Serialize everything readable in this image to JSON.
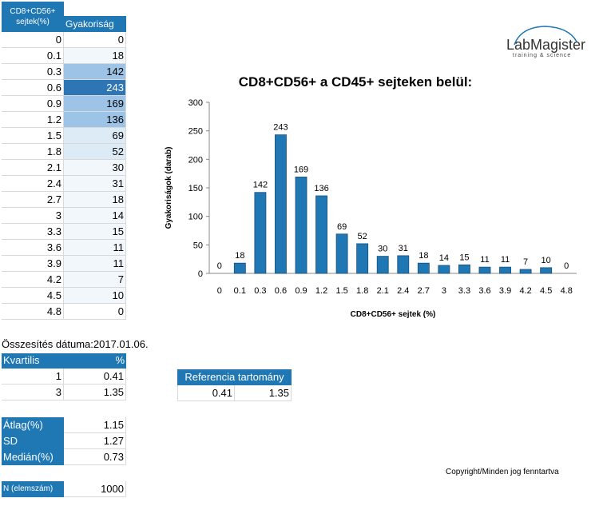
{
  "freq_table": {
    "col1_header_lines": [
      "CD8+CD56+",
      "sejtek(%)"
    ],
    "col2_header": "Gyakoriság",
    "rows": [
      {
        "x": "0",
        "f": "0"
      },
      {
        "x": "0.1",
        "f": "18"
      },
      {
        "x": "0.3",
        "f": "142"
      },
      {
        "x": "0.6",
        "f": "243"
      },
      {
        "x": "0.9",
        "f": "169"
      },
      {
        "x": "1.2",
        "f": "136"
      },
      {
        "x": "1.5",
        "f": "69"
      },
      {
        "x": "1.8",
        "f": "52"
      },
      {
        "x": "2.1",
        "f": "30"
      },
      {
        "x": "2.4",
        "f": "31"
      },
      {
        "x": "2.7",
        "f": "18"
      },
      {
        "x": "3",
        "f": "14"
      },
      {
        "x": "3.3",
        "f": "15"
      },
      {
        "x": "3.6",
        "f": "11"
      },
      {
        "x": "3.9",
        "f": "11"
      },
      {
        "x": "4.2",
        "f": "7"
      },
      {
        "x": "4.5",
        "f": "10"
      },
      {
        "x": "4.8",
        "f": "0"
      }
    ]
  },
  "summary_date": "Összesítés dátuma:2017.01.06.",
  "quartile_table": {
    "header_left": "Kvartilis",
    "header_right": "%",
    "rows": [
      {
        "q": "1",
        "v": "0.41"
      },
      {
        "q": "3",
        "v": "1.35"
      }
    ]
  },
  "reference": {
    "header": "Referencia tartomány",
    "low": "0.41",
    "high": "1.35"
  },
  "stats": [
    {
      "label": "Átlag(%)",
      "value": "1.15"
    },
    {
      "label": "SD",
      "value": "1.27"
    },
    {
      "label": "Medián(%)",
      "value": "0.73"
    }
  ],
  "n": {
    "label": "N (elemszám)",
    "value": "1000"
  },
  "logo": {
    "name": "LabMagister",
    "tagline": "training & science"
  },
  "copyright": "Copyright/Minden jog fenntartva",
  "colors": {
    "header_blue": "#1f77b4",
    "bar_blue": "#1f77b4",
    "heat_dark": "#2e75b6",
    "heat_mid": "#9dc3e6",
    "heat_light": "#ddebf7",
    "heat_faint": "#f2f7fc"
  },
  "chart_data": {
    "type": "bar",
    "title": "CD8+CD56+ a CD45+ sejteken belül:",
    "xlabel": "CD8+CD56+ sejtek (%)",
    "ylabel": "Gyakoriságok (darab)",
    "categories": [
      "0",
      "0.1",
      "0.3",
      "0.6",
      "0.9",
      "1.2",
      "1.5",
      "1.8",
      "2.1",
      "2.4",
      "2.7",
      "3",
      "3.3",
      "3.6",
      "3.9",
      "4.2",
      "4.5",
      "4.8"
    ],
    "values": [
      0,
      18,
      142,
      243,
      169,
      136,
      69,
      52,
      30,
      31,
      18,
      14,
      15,
      11,
      11,
      7,
      10,
      0
    ],
    "ylim": [
      0,
      300
    ],
    "yticks": [
      0,
      50,
      100,
      150,
      200,
      250,
      300
    ],
    "data_labels": true,
    "grid": false,
    "legend": "none"
  }
}
